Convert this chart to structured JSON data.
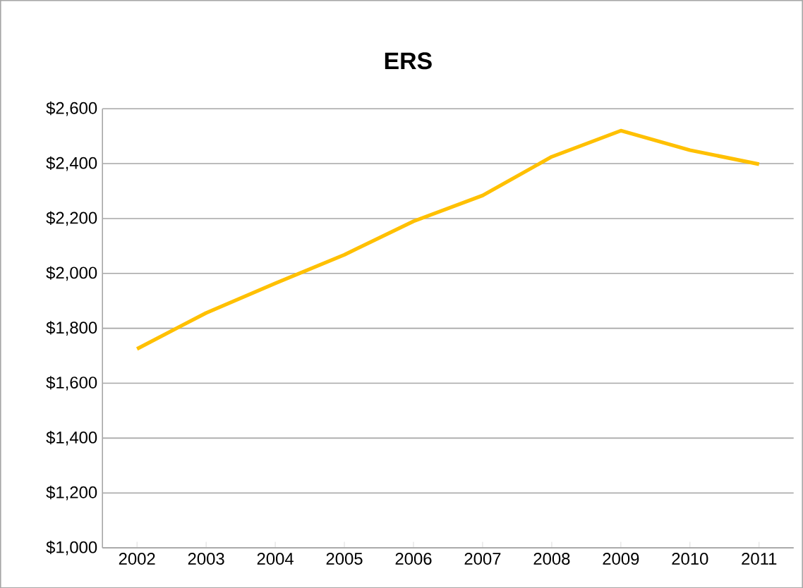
{
  "chart_data": {
    "type": "line",
    "title": "ERS",
    "categories": [
      "2002",
      "2003",
      "2004",
      "2005",
      "2006",
      "2007",
      "2008",
      "2009",
      "2010",
      "2011"
    ],
    "series": [
      {
        "color": "#ffc000",
        "values": [
          1725,
          1856,
          1964,
          2068,
          2190,
          2284,
          2425,
          2520,
          2449,
          2398
        ]
      }
    ],
    "ylim": [
      1000,
      2600
    ],
    "yticks": [
      {
        "value": 1000,
        "label": "$1,000"
      },
      {
        "value": 1200,
        "label": "$1,200"
      },
      {
        "value": 1400,
        "label": "$1,400"
      },
      {
        "value": 1600,
        "label": "$1,600"
      },
      {
        "value": 1800,
        "label": "$1,800"
      },
      {
        "value": 2000,
        "label": "$2,000"
      },
      {
        "value": 2200,
        "label": "$2,200"
      },
      {
        "value": 2400,
        "label": "$2,400"
      },
      {
        "value": 2600,
        "label": "$2,600"
      }
    ],
    "grid": "y",
    "marker": "none",
    "line_style": "solid"
  }
}
